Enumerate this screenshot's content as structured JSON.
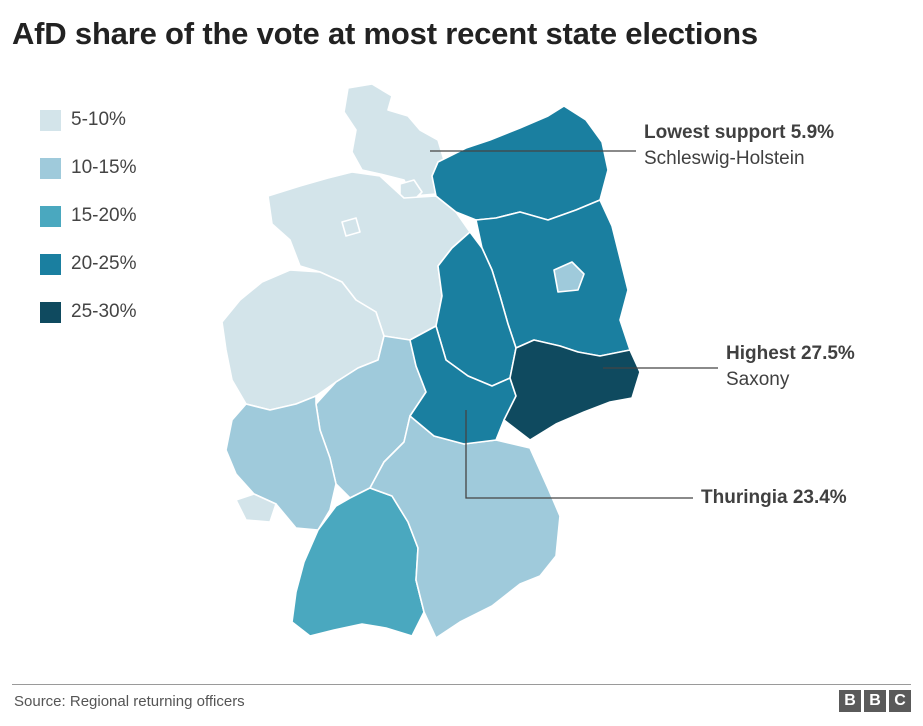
{
  "title": "AfD share of the vote at most recent state elections",
  "legend": [
    {
      "label": "5-10%",
      "color": "#d3e4ea"
    },
    {
      "label": "10-15%",
      "color": "#9fcadb"
    },
    {
      "label": "15-20%",
      "color": "#4aa8bf"
    },
    {
      "label": "20-25%",
      "color": "#1a7fa0"
    },
    {
      "label": "25-30%",
      "color": "#0f4a5f"
    }
  ],
  "callouts": {
    "lowest": {
      "headline": "Lowest support 5.9%",
      "state": "Schleswig-Holstein"
    },
    "highest": {
      "headline": "Highest 27.5%",
      "state": "Saxony"
    },
    "thuringia": {
      "headline": "Thuringia 23.4%"
    }
  },
  "states": [
    {
      "name": "Schleswig-Holstein",
      "band": "5-10%"
    },
    {
      "name": "Hamburg",
      "band": "5-10%"
    },
    {
      "name": "Lower Saxony",
      "band": "5-10%"
    },
    {
      "name": "Bremen",
      "band": "5-10%"
    },
    {
      "name": "North Rhine-Westphalia",
      "band": "5-10%"
    },
    {
      "name": "Saarland",
      "band": "5-10%"
    },
    {
      "name": "Hesse",
      "band": "10-15%"
    },
    {
      "name": "Rhineland-Palatinate",
      "band": "10-15%"
    },
    {
      "name": "Bavaria",
      "band": "10-15%"
    },
    {
      "name": "Baden-Württemberg",
      "band": "15-20%"
    },
    {
      "name": "Mecklenburg-Vorpommern",
      "band": "20-25%"
    },
    {
      "name": "Brandenburg",
      "band": "20-25%"
    },
    {
      "name": "Saxony-Anhalt",
      "band": "20-25%"
    },
    {
      "name": "Thuringia",
      "band": "20-25%"
    },
    {
      "name": "Berlin",
      "band": "10-15%"
    },
    {
      "name": "Saxony",
      "band": "25-30%"
    }
  ],
  "source": "Source: Regional returning officers",
  "logo": [
    "B",
    "B",
    "C"
  ]
}
